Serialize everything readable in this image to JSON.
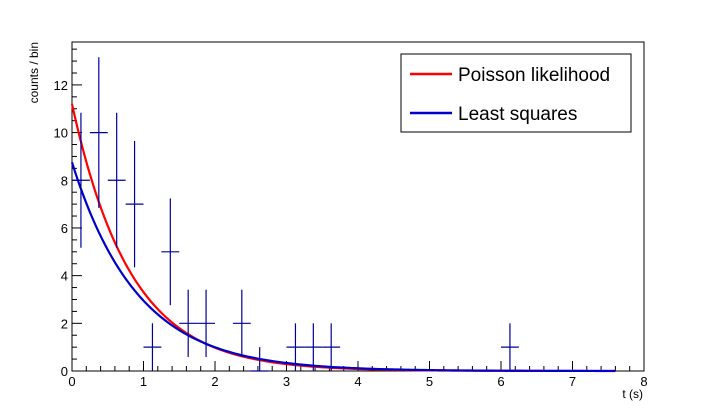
{
  "chart_data": {
    "type": "scatter",
    "xlabel": "t (s)",
    "ylabel": "counts / bin",
    "xlim": [
      0,
      8
    ],
    "ylim": [
      0,
      13.8
    ],
    "x_ticks": [
      "0",
      "1",
      "2",
      "3",
      "4",
      "5",
      "6",
      "7",
      "8"
    ],
    "y_ticks": [
      "0",
      "2",
      "4",
      "6",
      "8",
      "10",
      "12"
    ],
    "grid": false,
    "legend_position": "top-right",
    "bin_width": 0.25,
    "histogram": {
      "x": [
        0.125,
        0.375,
        0.625,
        0.875,
        1.125,
        1.375,
        1.625,
        1.875,
        2.375,
        2.625,
        3.125,
        3.375,
        3.625,
        6.125
      ],
      "y": [
        8,
        10,
        8,
        7,
        1,
        5,
        2,
        2,
        2,
        0,
        1,
        1,
        1,
        1
      ],
      "yerr": [
        2.83,
        3.16,
        2.83,
        2.65,
        1,
        2.24,
        1.41,
        1.41,
        1.41,
        1,
        1,
        1,
        1,
        1
      ]
    },
    "series": [
      {
        "name": "Poisson likelihood",
        "color": "#ff0000",
        "amplitude": 11.2,
        "decay_time": 0.82
      },
      {
        "name": "Least squares",
        "color": "#0000cc",
        "amplitude": 8.75,
        "decay_time": 0.92
      }
    ],
    "x_range_fit": [
      0,
      7.6
    ],
    "points_color": "#000099"
  }
}
